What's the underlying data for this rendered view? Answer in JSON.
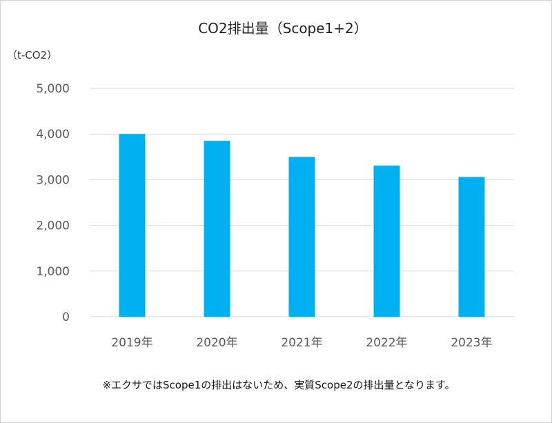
{
  "chart_data": {
    "type": "bar",
    "title": "CO2排出量（Scope1+2）",
    "ylabel": "（t-CO2）",
    "xlabel": "",
    "categories": [
      "2019年",
      "2020年",
      "2021年",
      "2022年",
      "2023年"
    ],
    "values": [
      4000,
      3850,
      3500,
      3310,
      3060
    ],
    "ylim": [
      0,
      5000
    ],
    "yticks": [
      0,
      1000,
      2000,
      3000,
      4000,
      5000
    ],
    "ytick_labels": [
      "0",
      "1,000",
      "2,000",
      "3,000",
      "4,000",
      "5,000"
    ],
    "grid": true,
    "legend": "none",
    "bar_color": "#00B0F0",
    "gridline_color": "#D9D9D9"
  },
  "note": "※エクサではScope1の排出はないため、実質Scope2の排出量となります。"
}
